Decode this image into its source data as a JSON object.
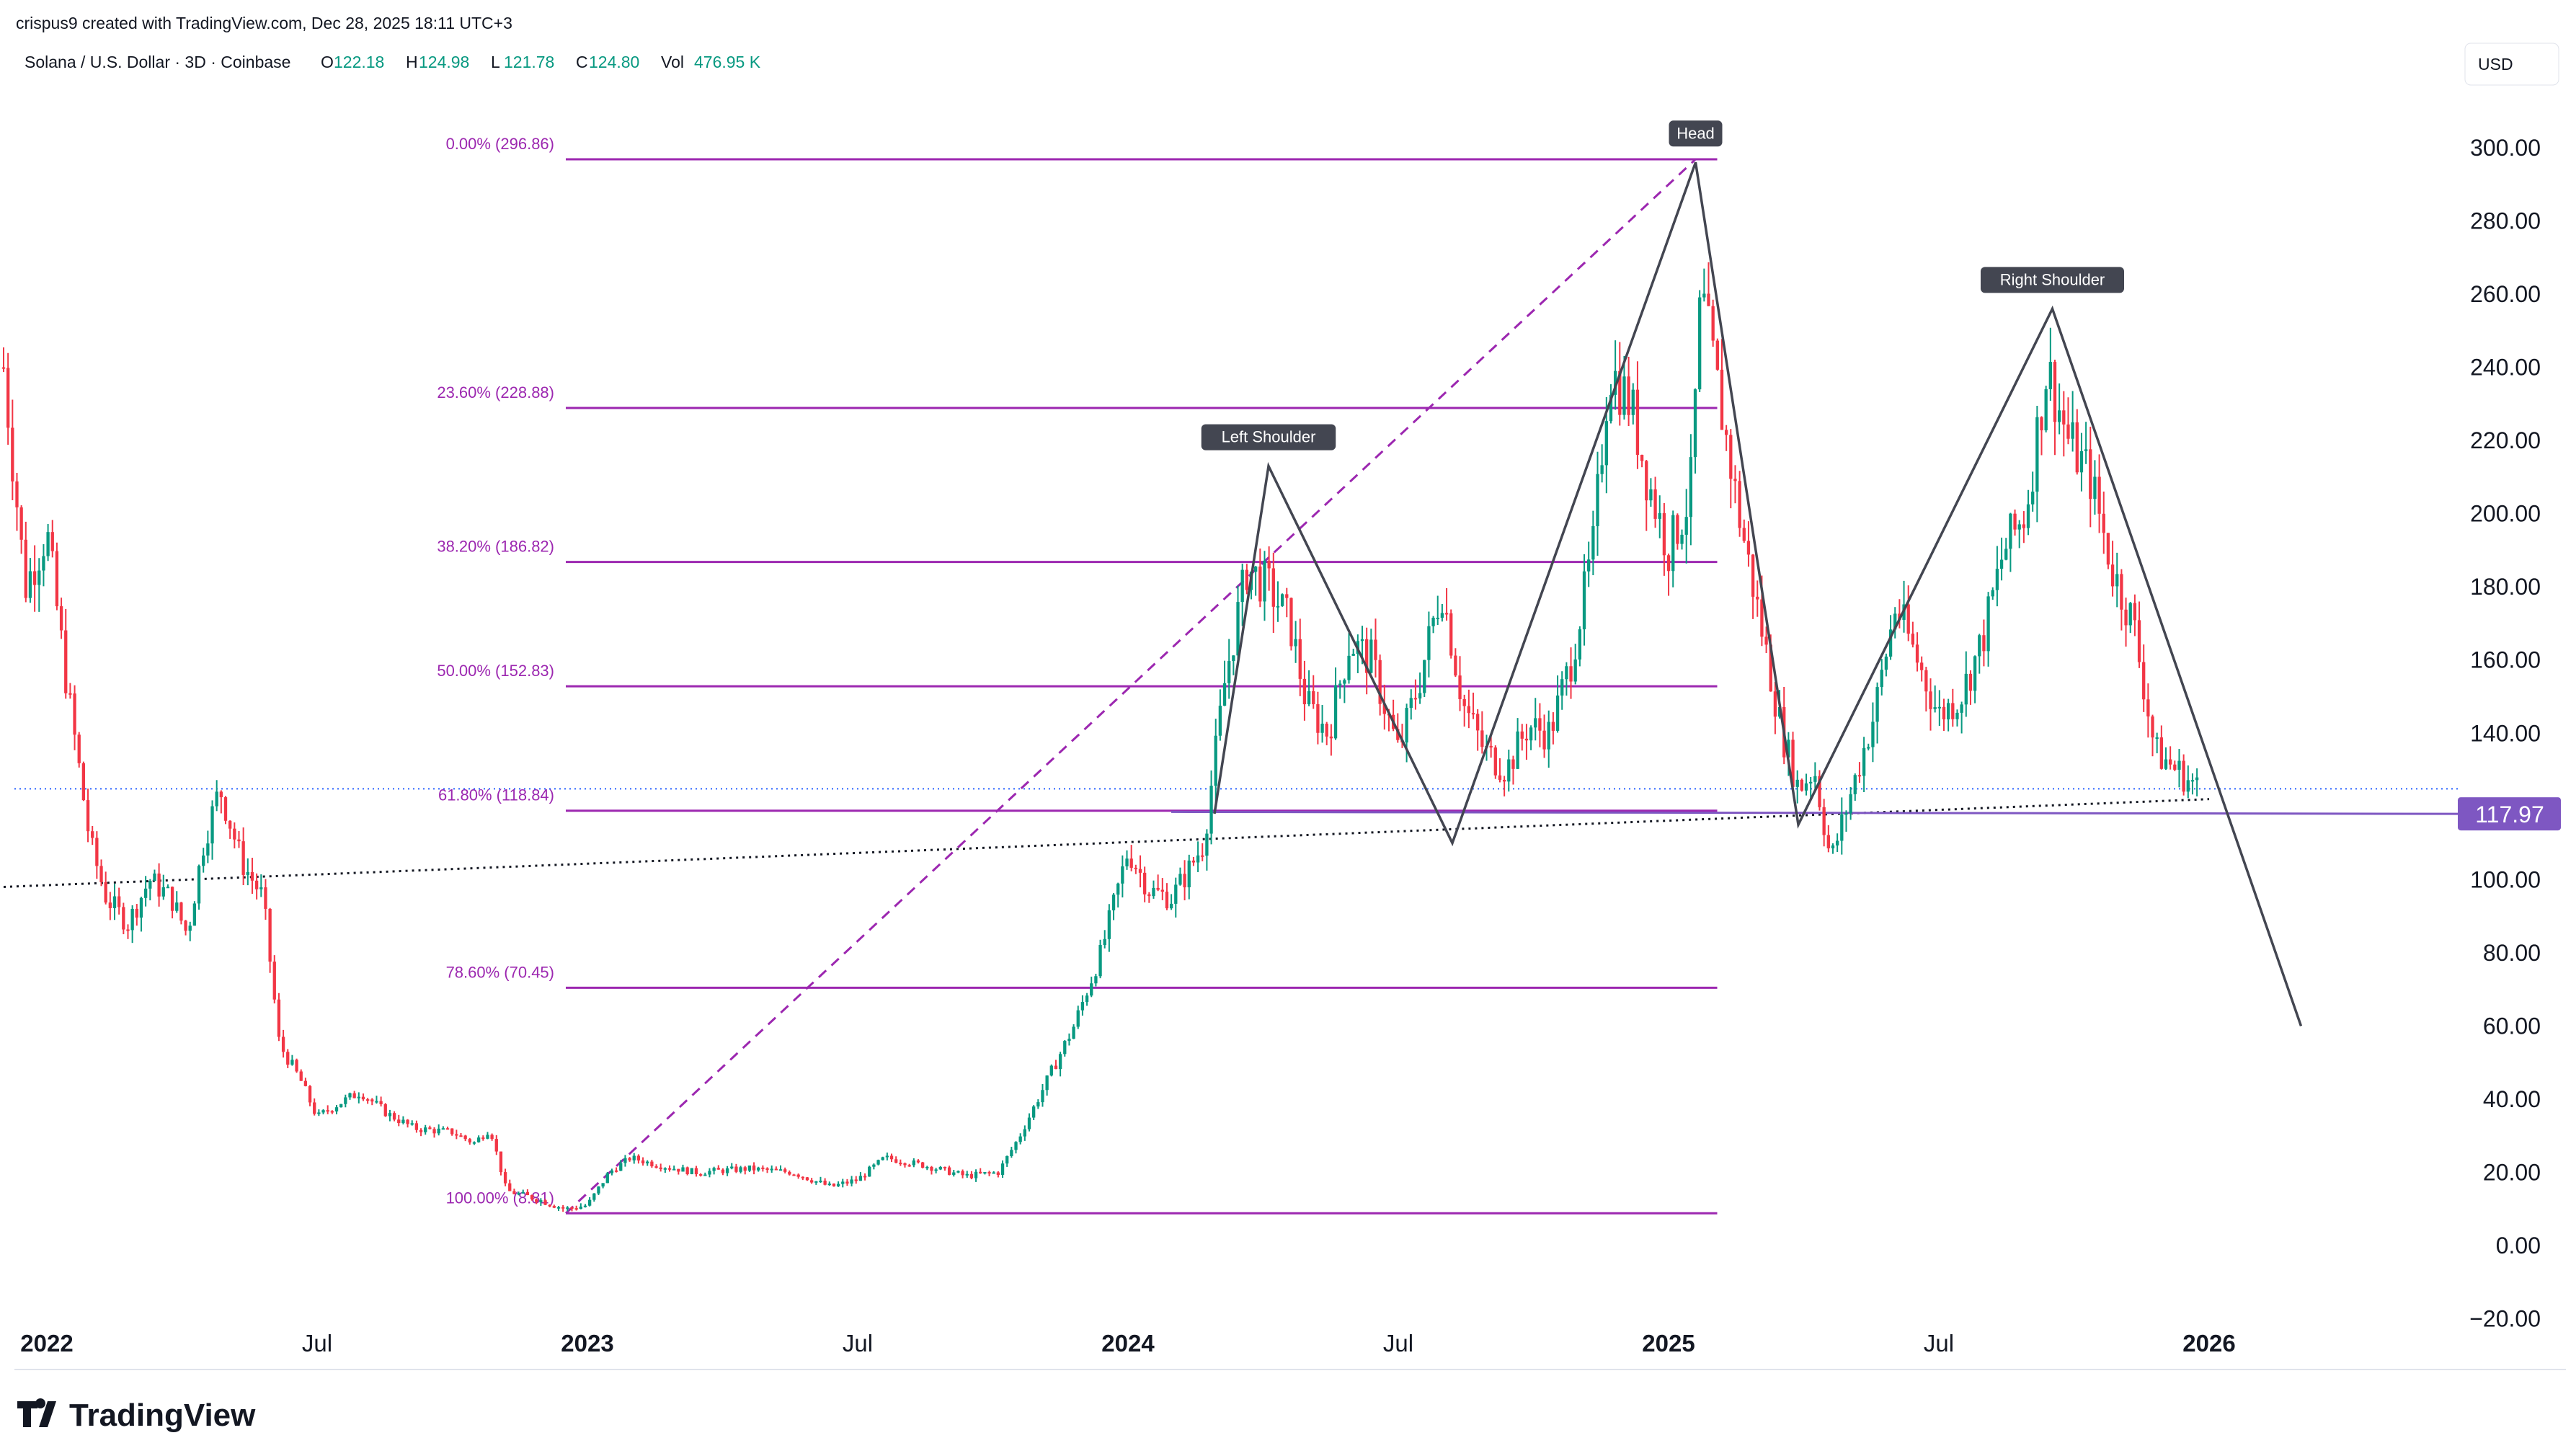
{
  "header": {
    "credit": "crispus9 created with TradingView.com, Dec 28, 2025 18:11 UTC+3",
    "symbol": "Solana / U.S. Dollar · 3D · Coinbase",
    "ohlcv": [
      {
        "label": "O",
        "value": "122.18"
      },
      {
        "label": "H",
        "value": "124.98"
      },
      {
        "label": "L",
        "value": "121.78"
      },
      {
        "label": "C",
        "value": "124.80"
      },
      {
        "label": "Vol",
        "value": "476.95 K"
      }
    ],
    "currency": "USD"
  },
  "footer": {
    "logo_text": "TradingView"
  },
  "colors": {
    "up": "#089981",
    "down": "#f23645",
    "fib": "#9c27b0",
    "fib_text": "#9c27b0",
    "pattern": "#434651",
    "price_tag": "#7e57c2",
    "grid_text": "#131722"
  },
  "chart_data": {
    "type": "candlestick",
    "title": "Solana / U.S. Dollar · 3D · Coinbase",
    "ylim": [
      -20,
      320
    ],
    "y_ticks": [
      "300.00",
      "280.00",
      "260.00",
      "240.00",
      "220.00",
      "200.00",
      "180.00",
      "160.00",
      "140.00",
      "120.00",
      "100.00",
      "80.00",
      "60.00",
      "40.00",
      "20.00",
      "0.00",
      "−20.00"
    ],
    "x_ticks": [
      {
        "label": "2022",
        "bold": true,
        "t": 2022.0
      },
      {
        "label": "Jul",
        "bold": false,
        "t": 2022.5
      },
      {
        "label": "2023",
        "bold": true,
        "t": 2023.0
      },
      {
        "label": "Jul",
        "bold": false,
        "t": 2023.5
      },
      {
        "label": "2024",
        "bold": true,
        "t": 2024.0
      },
      {
        "label": "Jul",
        "bold": false,
        "t": 2024.5
      },
      {
        "label": "2025",
        "bold": true,
        "t": 2025.0
      },
      {
        "label": "Jul",
        "bold": false,
        "t": 2025.5
      },
      {
        "label": "2026",
        "bold": true,
        "t": 2026.0
      }
    ],
    "current_price": {
      "label": "117.97",
      "value": 117.97
    },
    "last_close_line": 124.8,
    "price_path": [
      [
        2021.92,
        240
      ],
      [
        2021.96,
        180
      ],
      [
        2022.0,
        195
      ],
      [
        2022.04,
        150
      ],
      [
        2022.08,
        110
      ],
      [
        2022.11,
        95
      ],
      [
        2022.15,
        88
      ],
      [
        2022.19,
        100
      ],
      [
        2022.23,
        95
      ],
      [
        2022.26,
        85
      ],
      [
        2022.29,
        110
      ],
      [
        2022.32,
        125
      ],
      [
        2022.36,
        105
      ],
      [
        2022.4,
        95
      ],
      [
        2022.43,
        55
      ],
      [
        2022.47,
        45
      ],
      [
        2022.5,
        35
      ],
      [
        2022.53,
        38
      ],
      [
        2022.58,
        42
      ],
      [
        2022.63,
        36
      ],
      [
        2022.68,
        32
      ],
      [
        2022.75,
        31
      ],
      [
        2022.79,
        28
      ],
      [
        2022.82,
        32
      ],
      [
        2022.85,
        15
      ],
      [
        2022.9,
        13
      ],
      [
        2022.96,
        10
      ],
      [
        2023.0,
        11
      ],
      [
        2023.04,
        20
      ],
      [
        2023.08,
        24
      ],
      [
        2023.13,
        22
      ],
      [
        2023.2,
        20
      ],
      [
        2023.3,
        21
      ],
      [
        2023.38,
        20
      ],
      [
        2023.45,
        16
      ],
      [
        2023.5,
        18
      ],
      [
        2023.55,
        24
      ],
      [
        2023.62,
        22
      ],
      [
        2023.7,
        19
      ],
      [
        2023.76,
        20
      ],
      [
        2023.8,
        30
      ],
      [
        2023.85,
        45
      ],
      [
        2023.9,
        60
      ],
      [
        2023.95,
        80
      ],
      [
        2024.0,
        108
      ],
      [
        2024.04,
        97
      ],
      [
        2024.08,
        95
      ],
      [
        2024.11,
        102
      ],
      [
        2024.14,
        110
      ],
      [
        2024.18,
        155
      ],
      [
        2024.22,
        185
      ],
      [
        2024.26,
        180
      ],
      [
        2024.3,
        170
      ],
      [
        2024.33,
        148
      ],
      [
        2024.37,
        140
      ],
      [
        2024.41,
        165
      ],
      [
        2024.45,
        160
      ],
      [
        2024.5,
        135
      ],
      [
        2024.54,
        155
      ],
      [
        2024.58,
        180
      ],
      [
        2024.62,
        148
      ],
      [
        2024.66,
        135
      ],
      [
        2024.7,
        130
      ],
      [
        2024.74,
        142
      ],
      [
        2024.78,
        140
      ],
      [
        2024.82,
        160
      ],
      [
        2024.86,
        190
      ],
      [
        2024.89,
        240
      ],
      [
        2024.93,
        230
      ],
      [
        2024.96,
        210
      ],
      [
        2025.0,
        190
      ],
      [
        2025.04,
        205
      ],
      [
        2025.06,
        260
      ],
      [
        2025.09,
        235
      ],
      [
        2025.13,
        200
      ],
      [
        2025.17,
        170
      ],
      [
        2025.21,
        140
      ],
      [
        2025.24,
        125
      ],
      [
        2025.27,
        130
      ],
      [
        2025.3,
        105
      ],
      [
        2025.34,
        125
      ],
      [
        2025.38,
        145
      ],
      [
        2025.42,
        175
      ],
      [
        2025.46,
        160
      ],
      [
        2025.5,
        145
      ],
      [
        2025.54,
        150
      ],
      [
        2025.58,
        165
      ],
      [
        2025.62,
        190
      ],
      [
        2025.66,
        200
      ],
      [
        2025.7,
        240
      ],
      [
        2025.74,
        220
      ],
      [
        2025.78,
        210
      ],
      [
        2025.82,
        185
      ],
      [
        2025.86,
        170
      ],
      [
        2025.9,
        135
      ],
      [
        2025.94,
        130
      ],
      [
        2025.98,
        125
      ]
    ],
    "fib_levels": [
      {
        "label": "0.00% (296.86)",
        "value": 296.86
      },
      {
        "label": "23.60% (228.88)",
        "value": 228.88
      },
      {
        "label": "38.20% (186.82)",
        "value": 186.82
      },
      {
        "label": "50.00% (152.83)",
        "value": 152.83
      },
      {
        "label": "61.80% (118.84)",
        "value": 118.84
      },
      {
        "label": "78.60% (70.45)",
        "value": 70.45
      },
      {
        "label": "100.00% (8.81)",
        "value": 8.81
      }
    ],
    "fib_range": {
      "t_start": 2022.96,
      "t_end": 2025.09
    },
    "fib_trend": [
      [
        2022.96,
        8.81
      ],
      [
        2025.05,
        296.86
      ]
    ],
    "pattern_path": [
      [
        2024.16,
        118
      ],
      [
        2024.26,
        213
      ],
      [
        2024.6,
        110
      ],
      [
        2025.05,
        296
      ],
      [
        2025.24,
        115
      ],
      [
        2025.71,
        256
      ],
      [
        2026.17,
        60
      ]
    ],
    "neckline_solid": [
      [
        2024.08,
        118.5
      ],
      [
        2026.18,
        117.97
      ]
    ],
    "trendline_dotted": [
      [
        2021.92,
        98
      ],
      [
        2026.0,
        122
      ]
    ],
    "annotations": [
      {
        "label": "Left Shoulder",
        "t": 2024.26,
        "value": 213
      },
      {
        "label": "Head",
        "t": 2025.05,
        "value": 296
      },
      {
        "label": "Right Shoulder",
        "t": 2025.71,
        "value": 256
      }
    ]
  }
}
